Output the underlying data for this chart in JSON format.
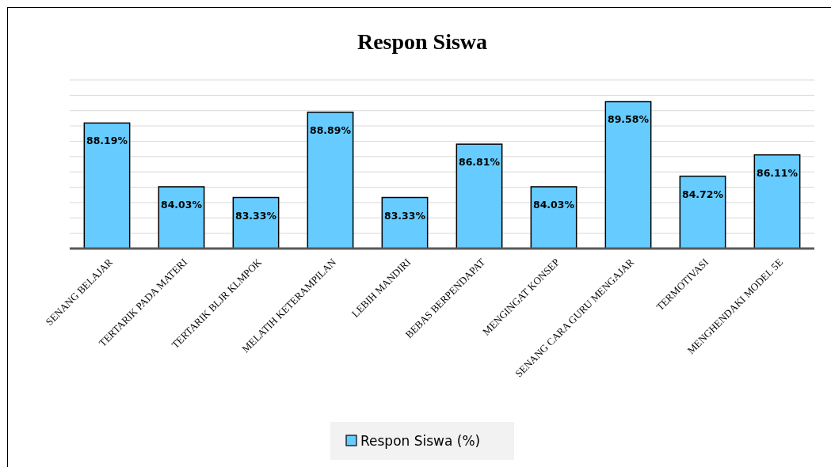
{
  "chart_data": {
    "type": "bar",
    "title": "Respon Siswa",
    "categories": [
      "SENANG BELAJAR",
      "TERTARIK PADA MATERI",
      "TERTARIK BLJR KLMPOK",
      "MELATIH KETERAMPILAN",
      "LEBIH MANDIRI",
      "BEBAS BERPENDAPAT",
      "MENGINGAT KONSEP",
      "SENANG CARA GURU MENGAJAR",
      "TERMOTIVASI",
      "MENGHENDAKI MODEL 5E"
    ],
    "series": [
      {
        "name": "Respon Siswa (%)",
        "color": "#66ccff",
        "values": [
          88.19,
          84.03,
          83.33,
          88.89,
          83.33,
          86.81,
          84.03,
          89.58,
          84.72,
          86.11
        ],
        "value_labels": [
          "88.19%",
          "84.03%",
          "83.33%",
          "88.89%",
          "83.33%",
          "86.81%",
          "84.03%",
          "89.58%",
          "84.72%",
          "86.11%"
        ]
      }
    ],
    "ylim": [
      80,
      91
    ],
    "yticks": [
      {
        "value": 80,
        "label": null
      },
      {
        "value": 81,
        "label": null
      },
      {
        "value": 82,
        "label": null
      },
      {
        "value": 83,
        "label": null
      },
      {
        "value": 84,
        "label": null
      },
      {
        "value": 85,
        "label": null
      },
      {
        "value": 86,
        "label": null
      },
      {
        "value": 87,
        "label": null
      },
      {
        "value": 88,
        "label": null
      },
      {
        "value": 89,
        "label": null
      },
      {
        "value": 90,
        "label": null
      },
      {
        "value": 91,
        "label": null
      }
    ],
    "tick_labels": "x",
    "grid": "y",
    "legend": "bottom"
  }
}
